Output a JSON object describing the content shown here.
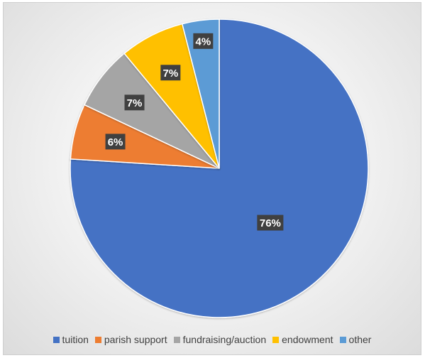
{
  "chart_data": {
    "type": "pie",
    "title": "",
    "categories": [
      "tuition",
      "parish support",
      "fundraising/auction",
      "endowment",
      "other"
    ],
    "values": [
      76,
      6,
      7,
      7,
      4
    ],
    "labels": [
      "76%",
      "6%",
      "7%",
      "7%",
      "4%"
    ],
    "colors": [
      "#4472C4",
      "#ED7D31",
      "#A5A5A5",
      "#FFC000",
      "#5B9BD5"
    ],
    "start_angle_deg": 0,
    "direction": "clockwise",
    "legend_position": "bottom",
    "data_label_style": "dark-callout"
  }
}
